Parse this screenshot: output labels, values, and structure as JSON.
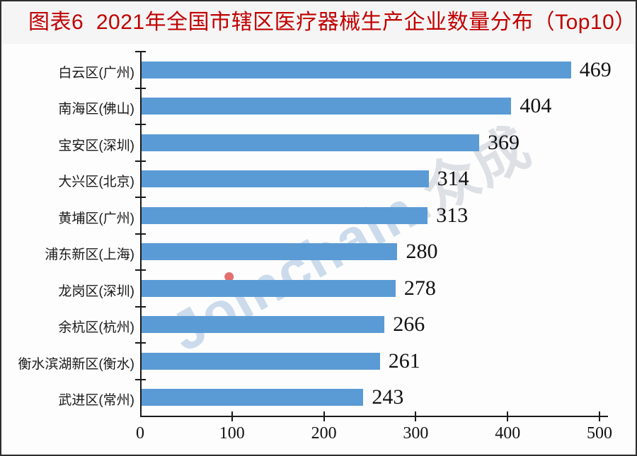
{
  "title": {
    "text": "图表6  2021年全国市辖区医疗器械生产企业数量分布（Top10）",
    "color": "#c00000"
  },
  "watermark": {
    "prefix": "Jo",
    "dotless_i": "ı",
    "suffix": "nchain",
    "cjk_suffix": ".众成",
    "dot_color": "#e05656",
    "text_color": "#7aa3d0"
  },
  "chart_data": {
    "type": "bar",
    "orientation": "horizontal",
    "title": "图表6 2021年全国市辖区医疗器械生产企业数量分布（Top10）",
    "categories": [
      "白云区(广州)",
      "南海区(佛山)",
      "宝安区(深圳)",
      "大兴区(北京)",
      "黄埔区(广州)",
      "浦东新区(上海)",
      "龙岗区(深圳)",
      "余杭区(杭州)",
      "衡水滨湖新区(衡水)",
      "武进区(常州)"
    ],
    "values": [
      469,
      404,
      369,
      314,
      313,
      280,
      278,
      266,
      261,
      243
    ],
    "value_labels_shown": true,
    "xlabel": "",
    "ylabel": "",
    "xlim": [
      0,
      500
    ],
    "x_ticks": [
      "0",
      "100",
      "200",
      "300",
      "400",
      "500"
    ],
    "bar_color": "#5b9bd5",
    "axis_color": "#1a1a1a",
    "grid": false,
    "legend": null
  }
}
